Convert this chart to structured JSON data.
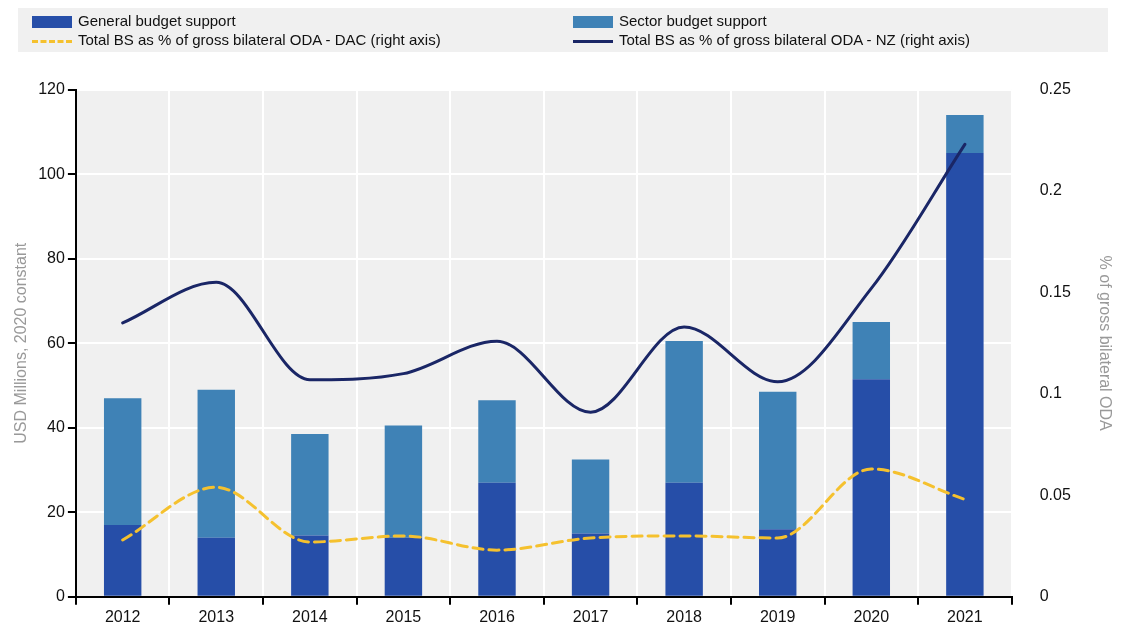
{
  "chart_data": {
    "type": "bar",
    "stacked": true,
    "legend": "top",
    "grid": true,
    "ylabel": "USD Millions, 2020 constant",
    "y2label": "% of gross bilateral ODA",
    "categories": [
      "2012",
      "2013",
      "2014",
      "2015",
      "2016",
      "2017",
      "2018",
      "2019",
      "2020",
      "2021"
    ],
    "series": [
      {
        "name": "General budget support",
        "color": "#264ea8",
        "values": [
          17,
          14,
          14.5,
          14,
          27,
          15,
          27,
          16,
          51.5,
          105
        ]
      },
      {
        "name": "Sector budget support",
        "color": "#3f82b6",
        "values": [
          30,
          35,
          24,
          26.5,
          19.5,
          17.5,
          33.5,
          32.5,
          13.5,
          9
        ]
      },
      {
        "name": "Total BS as % of gross bilateral ODA - DAC (right axis)",
        "type": "line",
        "axis": "y2",
        "line_style": "dashed",
        "color": "#f5c12e",
        "values": [
          0.028,
          0.054,
          0.027,
          0.03,
          0.023,
          0.029,
          0.03,
          0.029,
          0.063,
          0.048
        ]
      },
      {
        "name": "Total BS as % of gross bilateral ODA - NZ (right axis)",
        "type": "line",
        "axis": "y2",
        "line_style": "solid",
        "color": "#1a2666",
        "values": [
          0.135,
          0.155,
          0.107,
          0.11,
          0.126,
          0.091,
          0.133,
          0.106,
          0.152,
          0.223
        ]
      }
    ],
    "ylim": [
      0,
      120
    ],
    "yticks": [
      0,
      20,
      40,
      60,
      80,
      100,
      120
    ],
    "y2lim": [
      0,
      0.25
    ],
    "y2ticks": [
      0,
      0.05,
      0.1,
      0.15,
      0.2,
      0.25
    ]
  }
}
